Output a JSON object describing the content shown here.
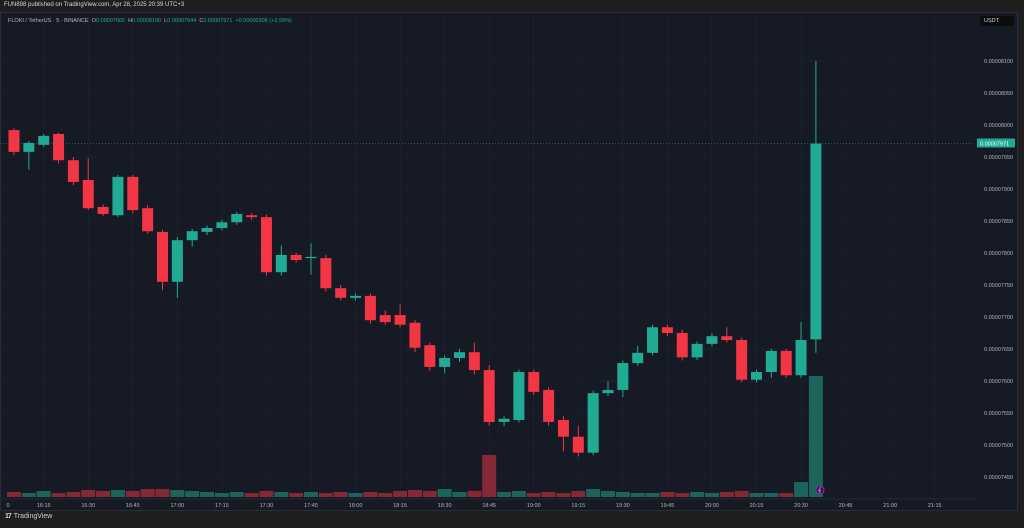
{
  "header": {
    "published": "FUN898 published on TradingView.com, Apr 28, 2025 20:39 UTC+3"
  },
  "legend": {
    "symbol": "FLOKI / TetherUS · 5 · BINANCE",
    "o_label": "O",
    "o": "0.00007665",
    "h_label": "H",
    "h": "0.00008100",
    "l_label": "L",
    "l": "0.00007644",
    "c_label": "C",
    "c": "0.00007971",
    "change": "+0.00000306 (+3.99%)"
  },
  "currency": "USDT",
  "last_price_label": "0.00007971",
  "footer": {
    "brand": "TradingView"
  },
  "colors": {
    "up": "#22ab94",
    "down": "#f23645",
    "bg": "#161a25",
    "grid": "#222633"
  },
  "chart_data": {
    "type": "candlestick",
    "value_scale": "1e-8",
    "ylim": [
      7420,
      8160
    ],
    "price_ticks": [
      "0.00008100",
      "0.00008050",
      "0.00008000",
      "0.00007950",
      "0.00007900",
      "0.00007850",
      "0.00007800",
      "0.00007750",
      "0.00007700",
      "0.00007650",
      "0.00007600",
      "0.00007550",
      "0.00007500",
      "0.00007450"
    ],
    "price_tick_values": [
      8100,
      8050,
      8000,
      7950,
      7900,
      7850,
      7800,
      7750,
      7700,
      7650,
      7600,
      7550,
      7500,
      7450
    ],
    "time_ticks": [
      "0",
      "16:15",
      "16:30",
      "16:45",
      "17:00",
      "17:15",
      "17:30",
      "17:45",
      "18:00",
      "18:15",
      "18:30",
      "18:45",
      "19:00",
      "19:15",
      "19:30",
      "19:45",
      "20:00",
      "20:15",
      "20:30",
      "20:45",
      "21:00",
      "21:15"
    ],
    "time_tick_index": [
      -1,
      2,
      5,
      8,
      11,
      14,
      17,
      20,
      23,
      26,
      29,
      32,
      35,
      38,
      41,
      44,
      47,
      50,
      53,
      56,
      59,
      62
    ],
    "first_candle_time": "16:05",
    "interval_minutes": 5,
    "candles": [
      [
        7992,
        7995,
        7953,
        7958
      ],
      [
        7958,
        7975,
        7930,
        7972
      ],
      [
        7969,
        7986,
        7966,
        7983
      ],
      [
        7986,
        7988,
        7940,
        7945
      ],
      [
        7945,
        7950,
        7906,
        7911
      ],
      [
        7914,
        7948,
        7867,
        7870
      ],
      [
        7872,
        7876,
        7858,
        7861
      ],
      [
        7859,
        7922,
        7856,
        7919
      ],
      [
        7919,
        7922,
        7862,
        7867
      ],
      [
        7870,
        7875,
        7830,
        7834
      ],
      [
        7833,
        7836,
        7742,
        7755
      ],
      [
        7755,
        7825,
        7730,
        7820
      ],
      [
        7820,
        7838,
        7810,
        7834
      ],
      [
        7833,
        7843,
        7828,
        7839
      ],
      [
        7839,
        7852,
        7835,
        7848
      ],
      [
        7848,
        7864,
        7844,
        7861
      ],
      [
        7859,
        7862,
        7852,
        7856
      ],
      [
        7856,
        7860,
        7765,
        7770
      ],
      [
        7770,
        7812,
        7765,
        7797
      ],
      [
        7797,
        7800,
        7785,
        7789
      ],
      [
        7792,
        7815,
        7766,
        7794
      ],
      [
        7792,
        7797,
        7740,
        7745
      ],
      [
        7745,
        7750,
        7726,
        7730
      ],
      [
        7730,
        7737,
        7726,
        7733
      ],
      [
        7733,
        7737,
        7690,
        7695
      ],
      [
        7703,
        7710,
        7688,
        7692
      ],
      [
        7703,
        7720,
        7684,
        7688
      ],
      [
        7691,
        7695,
        7645,
        7652
      ],
      [
        7656,
        7660,
        7616,
        7622
      ],
      [
        7622,
        7640,
        7612,
        7636
      ],
      [
        7636,
        7650,
        7630,
        7645
      ],
      [
        7645,
        7660,
        7610,
        7617
      ],
      [
        7617,
        7625,
        7530,
        7536
      ],
      [
        7536,
        7545,
        7530,
        7541
      ],
      [
        7539,
        7618,
        7535,
        7614
      ],
      [
        7614,
        7618,
        7578,
        7583
      ],
      [
        7586,
        7590,
        7530,
        7536
      ],
      [
        7539,
        7545,
        7490,
        7513
      ],
      [
        7513,
        7530,
        7482,
        7488
      ],
      [
        7488,
        7585,
        7484,
        7581
      ],
      [
        7581,
        7600,
        7576,
        7586
      ],
      [
        7586,
        7632,
        7575,
        7628
      ],
      [
        7628,
        7655,
        7624,
        7644
      ],
      [
        7644,
        7688,
        7640,
        7684
      ],
      [
        7684,
        7688,
        7670,
        7675
      ],
      [
        7675,
        7680,
        7632,
        7637
      ],
      [
        7637,
        7662,
        7633,
        7658
      ],
      [
        7658,
        7675,
        7654,
        7670
      ],
      [
        7670,
        7684,
        7660,
        7664
      ],
      [
        7664,
        7668,
        7598,
        7602
      ],
      [
        7602,
        7618,
        7598,
        7614
      ],
      [
        7614,
        7650,
        7605,
        7647
      ],
      [
        7647,
        7650,
        7605,
        7609
      ],
      [
        7609,
        7692,
        7605,
        7664
      ],
      [
        7665,
        8100,
        7644,
        7971
      ]
    ],
    "volume": [
      5,
      4,
      6,
      4,
      5,
      7,
      6,
      7,
      6,
      8,
      8,
      7,
      6,
      5,
      4,
      5,
      4,
      6,
      5,
      4,
      5,
      4,
      5,
      4,
      5,
      4,
      6,
      7,
      6,
      8,
      5,
      6,
      42,
      5,
      6,
      4,
      5,
      4,
      6,
      8,
      6,
      5,
      4,
      4,
      5,
      4,
      5,
      4,
      5,
      6,
      4,
      4,
      4,
      15,
      121
    ]
  }
}
